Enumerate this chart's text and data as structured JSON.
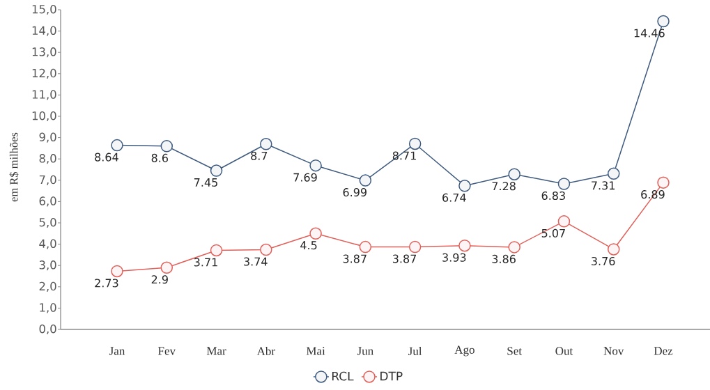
{
  "chart_data": {
    "type": "line",
    "ylabel": "em R$ milhões",
    "categories": [
      "Jan",
      "Fev",
      "Mar",
      "Abr",
      "Mai",
      "Jun",
      "Jul",
      "Ago",
      "Set",
      "Out",
      "Nov",
      "Dez"
    ],
    "series": [
      {
        "name": "RCL",
        "color": "#3e5a7e",
        "values": [
          8.64,
          8.6,
          7.45,
          8.7,
          7.69,
          6.99,
          8.71,
          6.74,
          7.28,
          6.83,
          7.31,
          14.46
        ]
      },
      {
        "name": "DTP",
        "color": "#e0605a",
        "values": [
          2.73,
          2.9,
          3.71,
          3.74,
          4.5,
          3.87,
          3.87,
          3.93,
          3.86,
          5.07,
          3.76,
          6.89
        ]
      }
    ],
    "ylim": [
      0,
      15
    ],
    "yticks": [
      {
        "value": 0,
        "label": "0,0"
      },
      {
        "value": 1,
        "label": "1,0"
      },
      {
        "value": 2,
        "label": "2,0"
      },
      {
        "value": 3,
        "label": "3,0"
      },
      {
        "value": 4,
        "label": "4,0"
      },
      {
        "value": 5,
        "label": "5,0"
      },
      {
        "value": 6,
        "label": "6,0"
      },
      {
        "value": 7,
        "label": "7,0"
      },
      {
        "value": 8,
        "label": "8,0"
      },
      {
        "value": 9,
        "label": "9,0"
      },
      {
        "value": 10,
        "label": "10,0"
      },
      {
        "value": 11,
        "label": "11,0"
      },
      {
        "value": 12,
        "label": "12,0"
      },
      {
        "value": 13,
        "label": "13,0"
      },
      {
        "value": 14,
        "label": "14,0"
      },
      {
        "value": 15,
        "label": "15,0"
      }
    ],
    "data_labels": true,
    "legend": "bottom",
    "marker": "circle",
    "line_style": "solid"
  }
}
